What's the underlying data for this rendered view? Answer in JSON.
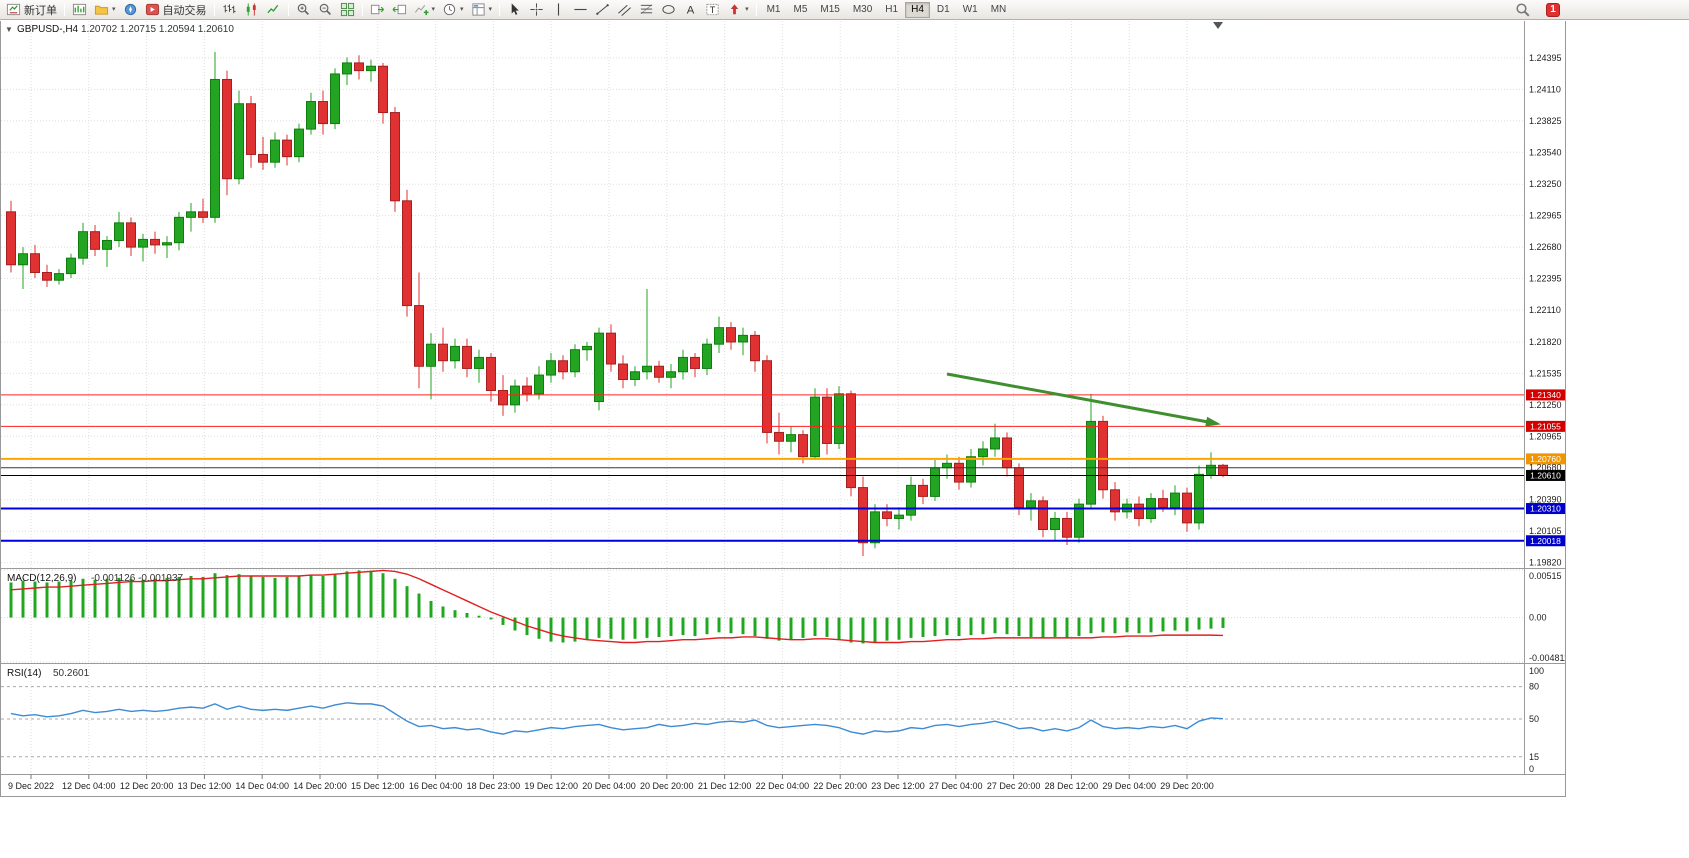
{
  "toolbar": {
    "new_order": "新订单",
    "auto_trading": "自动交易",
    "timeframes": [
      "M1",
      "M5",
      "M15",
      "M30",
      "H1",
      "H4",
      "D1",
      "W1",
      "MN"
    ],
    "active_timeframe": "H4",
    "badge": "1",
    "icons": [
      "new-order-icon",
      "new-chart-icon",
      "profiles-icon",
      "navigator-icon",
      "auto-trading-icon",
      "bar-chart-icon",
      "candlestick-icon",
      "line-chart-icon",
      "zoom-in-icon",
      "zoom-out-icon",
      "tile-windows-icon",
      "auto-scroll-icon",
      "chart-shift-icon",
      "indicators-icon",
      "periods-icon",
      "templates-icon",
      "cursor-icon",
      "crosshair-icon",
      "vertical-line-icon",
      "horizontal-line-icon",
      "trendline-icon",
      "channel-icon",
      "fibonacci-icon",
      "cycle-lines-icon",
      "text-icon",
      "label-icon",
      "arrows-icon",
      "search-icon",
      "notification-icon"
    ]
  },
  "chart_data": [
    {
      "type": "candlestick",
      "pane": "main",
      "title": "GBPUSD-,H4",
      "ohlc_text": "1.20702 1.20715 1.20594 1.20610",
      "current_ohlc": {
        "open": 1.20702,
        "high": 1.20715,
        "low": 1.20594,
        "close": 1.2061
      },
      "ylim": [
        1.1978,
        1.2473
      ],
      "up_color": "#23a523",
      "down_color": "#e03232",
      "y_ticks": [
        "1.24395",
        "1.24110",
        "1.23825",
        "1.23540",
        "1.23250",
        "1.22965",
        "1.22680",
        "1.22395",
        "1.22110",
        "1.21820",
        "1.21535",
        "1.21250",
        "1.20965",
        "1.20680",
        "1.20390",
        "1.20105",
        "1.19820"
      ],
      "x_labels": [
        "9 Dec 2022",
        "12 Dec 04:00",
        "12 Dec 20:00",
        "13 Dec 12:00",
        "14 Dec 04:00",
        "14 Dec 20:00",
        "15 Dec 12:00",
        "16 Dec 04:00",
        "18 Dec 23:00",
        "19 Dec 12:00",
        "20 Dec 04:00",
        "20 Dec 20:00",
        "21 Dec 12:00",
        "22 Dec 04:00",
        "22 Dec 20:00",
        "23 Dec 12:00",
        "27 Dec 04:00",
        "27 Dec 20:00",
        "28 Dec 12:00",
        "29 Dec 04:00",
        "29 Dec 20:00"
      ],
      "hlines": [
        {
          "price": 1.2134,
          "color": "#ff2020",
          "width": 1,
          "label": "1.21340",
          "label_bg": "#d40000"
        },
        {
          "price": 1.21055,
          "color": "#ff2020",
          "width": 1,
          "label": "1.21055",
          "label_bg": "#d40000"
        },
        {
          "price": 1.2076,
          "color": "#ffa500",
          "width": 2,
          "label": "1.20760",
          "label_bg": "#f09500"
        },
        {
          "price": 1.2068,
          "color": "#3a3a3a",
          "width": 1,
          "label": null,
          "label_bg": null
        },
        {
          "price": 1.2061,
          "color": "#000000",
          "width": 1,
          "label": "1.20610",
          "label_bg": "#000000"
        },
        {
          "price": 1.2031,
          "color": "#0000dd",
          "width": 2,
          "label": "1.20310",
          "label_bg": "#0000cc"
        },
        {
          "price": 1.20018,
          "color": "#0000dd",
          "width": 2,
          "label": "1.20018",
          "label_bg": "#0000cc"
        }
      ],
      "trend_arrow": {
        "from": {
          "bar": 78,
          "price": 1.2153
        },
        "to": {
          "bar": 100.5,
          "price": 1.2108
        },
        "color": "#3f8f2f"
      },
      "candles_ohlc": [
        [
          1.23,
          1.231,
          1.2245,
          1.2252
        ],
        [
          1.2252,
          1.2268,
          1.223,
          1.2262
        ],
        [
          1.2262,
          1.227,
          1.224,
          1.2245
        ],
        [
          1.2245,
          1.2252,
          1.2232,
          1.2238
        ],
        [
          1.2238,
          1.2248,
          1.2234,
          1.2244
        ],
        [
          1.2244,
          1.2262,
          1.224,
          1.2258
        ],
        [
          1.2258,
          1.229,
          1.2252,
          1.2282
        ],
        [
          1.2282,
          1.2288,
          1.226,
          1.2266
        ],
        [
          1.2266,
          1.2278,
          1.225,
          1.2274
        ],
        [
          1.2274,
          1.23,
          1.2268,
          1.229
        ],
        [
          1.229,
          1.2295,
          1.226,
          1.2268
        ],
        [
          1.2268,
          1.228,
          1.2255,
          1.2275
        ],
        [
          1.2275,
          1.2282,
          1.2262,
          1.227
        ],
        [
          1.227,
          1.2278,
          1.2258,
          1.2272
        ],
        [
          1.2272,
          1.23,
          1.2265,
          1.2295
        ],
        [
          1.2295,
          1.2308,
          1.2282,
          1.23
        ],
        [
          1.23,
          1.2312,
          1.229,
          1.2295
        ],
        [
          1.2295,
          1.2445,
          1.229,
          1.242
        ],
        [
          1.242,
          1.2428,
          1.2315,
          1.233
        ],
        [
          1.233,
          1.241,
          1.2325,
          1.2398
        ],
        [
          1.2398,
          1.2405,
          1.234,
          1.2352
        ],
        [
          1.2352,
          1.2368,
          1.2338,
          1.2345
        ],
        [
          1.2345,
          1.2372,
          1.234,
          1.2365
        ],
        [
          1.2365,
          1.237,
          1.2342,
          1.235
        ],
        [
          1.235,
          1.238,
          1.2345,
          1.2375
        ],
        [
          1.2375,
          1.2408,
          1.237,
          1.24
        ],
        [
          1.24,
          1.241,
          1.237,
          1.238
        ],
        [
          1.238,
          1.243,
          1.2375,
          1.2425
        ],
        [
          1.2425,
          1.244,
          1.2415,
          1.2435
        ],
        [
          1.2435,
          1.2442,
          1.242,
          1.2428
        ],
        [
          1.2428,
          1.2438,
          1.2418,
          1.2432
        ],
        [
          1.2432,
          1.2435,
          1.238,
          1.239
        ],
        [
          1.239,
          1.2395,
          1.23,
          1.231
        ],
        [
          1.231,
          1.232,
          1.2205,
          1.2215
        ],
        [
          1.2215,
          1.2245,
          1.214,
          1.216
        ],
        [
          1.216,
          1.219,
          1.213,
          1.218
        ],
        [
          1.218,
          1.2195,
          1.2155,
          1.2165
        ],
        [
          1.2165,
          1.2185,
          1.2158,
          1.2178
        ],
        [
          1.2178,
          1.2185,
          1.215,
          1.2158
        ],
        [
          1.2158,
          1.2175,
          1.2145,
          1.2168
        ],
        [
          1.2168,
          1.2172,
          1.2128,
          1.2138
        ],
        [
          1.2138,
          1.2152,
          1.2115,
          1.2125
        ],
        [
          1.2125,
          1.2148,
          1.2118,
          1.2142
        ],
        [
          1.2142,
          1.215,
          1.2128,
          1.2135
        ],
        [
          1.2135,
          1.216,
          1.213,
          1.2152
        ],
        [
          1.2152,
          1.2172,
          1.2145,
          1.2165
        ],
        [
          1.2165,
          1.217,
          1.2148,
          1.2155
        ],
        [
          1.2155,
          1.218,
          1.215,
          1.2175
        ],
        [
          1.2175,
          1.2182,
          1.2165,
          1.2178
        ],
        [
          1.2128,
          1.2195,
          1.212,
          1.219
        ],
        [
          1.219,
          1.2198,
          1.2155,
          1.2162
        ],
        [
          1.2162,
          1.217,
          1.214,
          1.2148
        ],
        [
          1.2148,
          1.216,
          1.2142,
          1.2155
        ],
        [
          1.2155,
          1.223,
          1.2148,
          1.216
        ],
        [
          1.216,
          1.2165,
          1.2145,
          1.215
        ],
        [
          1.215,
          1.2162,
          1.214,
          1.2155
        ],
        [
          1.2155,
          1.2175,
          1.2148,
          1.2168
        ],
        [
          1.2168,
          1.2172,
          1.215,
          1.2158
        ],
        [
          1.2158,
          1.2185,
          1.2152,
          1.218
        ],
        [
          1.218,
          1.2205,
          1.2172,
          1.2195
        ],
        [
          1.2195,
          1.22,
          1.2175,
          1.2182
        ],
        [
          1.2182,
          1.2195,
          1.217,
          1.2188
        ],
        [
          1.2188,
          1.2192,
          1.2155,
          1.2165
        ],
        [
          1.2165,
          1.217,
          1.209,
          1.21
        ],
        [
          1.21,
          1.2118,
          1.208,
          1.2092
        ],
        [
          1.2092,
          1.2105,
          1.2082,
          1.2098
        ],
        [
          1.2098,
          1.2102,
          1.2072,
          1.2078
        ],
        [
          1.2078,
          1.214,
          1.2075,
          1.2132
        ],
        [
          1.2132,
          1.214,
          1.208,
          1.209
        ],
        [
          1.209,
          1.2142,
          1.2085,
          1.2135
        ],
        [
          1.2135,
          1.2138,
          1.2042,
          1.205
        ],
        [
          1.205,
          1.206,
          1.1988,
          1.2
        ],
        [
          1.2,
          1.2035,
          1.1995,
          1.2028
        ],
        [
          1.2028,
          1.2035,
          1.2015,
          1.2022
        ],
        [
          1.2022,
          1.2032,
          1.2012,
          1.2025
        ],
        [
          1.2025,
          1.206,
          1.202,
          1.2052
        ],
        [
          1.2052,
          1.2058,
          1.2035,
          1.2042
        ],
        [
          1.2042,
          1.2075,
          1.2038,
          1.2068
        ],
        [
          1.2068,
          1.208,
          1.2058,
          1.2072
        ],
        [
          1.2072,
          1.2078,
          1.2048,
          1.2055
        ],
        [
          1.2055,
          1.2085,
          1.205,
          1.2078
        ],
        [
          1.2078,
          1.2092,
          1.207,
          1.2085
        ],
        [
          1.2085,
          1.2108,
          1.2078,
          1.2095
        ],
        [
          1.2095,
          1.21,
          1.206,
          1.2068
        ],
        [
          1.2068,
          1.2072,
          1.2025,
          1.2032
        ],
        [
          1.2032,
          1.2045,
          1.202,
          1.2038
        ],
        [
          1.2038,
          1.2042,
          1.2005,
          1.2012
        ],
        [
          1.2012,
          1.2028,
          1.2002,
          1.2022
        ],
        [
          1.2022,
          1.2028,
          1.1998,
          1.2005
        ],
        [
          1.2005,
          1.204,
          1.2,
          1.2035
        ],
        [
          1.2035,
          1.2135,
          1.203,
          1.211
        ],
        [
          1.211,
          1.2115,
          1.204,
          1.2048
        ],
        [
          1.2048,
          1.2055,
          1.202,
          1.2028
        ],
        [
          1.2028,
          1.204,
          1.2022,
          1.2035
        ],
        [
          1.2035,
          1.2042,
          1.2015,
          1.2022
        ],
        [
          1.2022,
          1.2045,
          1.2018,
          1.204
        ],
        [
          1.204,
          1.2048,
          1.2028,
          1.2032
        ],
        [
          1.2032,
          1.2052,
          1.2025,
          1.2045
        ],
        [
          1.2045,
          1.205,
          1.201,
          1.2018
        ],
        [
          1.2018,
          1.207,
          1.2012,
          1.2062
        ],
        [
          1.2062,
          1.2082,
          1.2058,
          1.20702
        ],
        [
          1.20702,
          1.20715,
          1.20594,
          1.2061
        ]
      ]
    },
    {
      "type": "macd_histogram",
      "pane": "macd",
      "title": "MACD(12,26,9)",
      "values_text": "-0.001126 -0.001937",
      "macd_value": -0.001126,
      "signal_value": -0.001937,
      "ylim": [
        -0.004811,
        0.00515
      ],
      "y_ticks": [
        "0.00515",
        "0.00",
        "-0.004811"
      ],
      "y_tick_values": [
        0.00515,
        0,
        -0.004811
      ],
      "histogram_color": "#1fa81f",
      "signal_color": "#e02020",
      "histogram": [
        0.0038,
        0.004,
        0.0039,
        0.0038,
        0.0039,
        0.004,
        0.0042,
        0.0041,
        0.0042,
        0.0043,
        0.0042,
        0.0041,
        0.0042,
        0.0043,
        0.0044,
        0.0045,
        0.0044,
        0.0048,
        0.0046,
        0.0047,
        0.0045,
        0.0044,
        0.0043,
        0.0044,
        0.0045,
        0.0046,
        0.0045,
        0.0047,
        0.005,
        0.0051,
        0.005,
        0.0048,
        0.0042,
        0.0034,
        0.0026,
        0.0018,
        0.0012,
        0.0008,
        0.0005,
        0.0002,
        -0.0002,
        -0.0008,
        -0.0014,
        -0.0019,
        -0.0023,
        -0.0026,
        -0.0027,
        -0.0026,
        -0.0024,
        -0.0022,
        -0.0023,
        -0.0024,
        -0.0023,
        -0.0022,
        -0.0021,
        -0.002,
        -0.0019,
        -0.002,
        -0.0018,
        -0.0016,
        -0.0017,
        -0.0018,
        -0.002,
        -0.0023,
        -0.0025,
        -0.0024,
        -0.0022,
        -0.002,
        -0.0021,
        -0.0024,
        -0.0027,
        -0.0028,
        -0.0027,
        -0.0025,
        -0.0024,
        -0.0022,
        -0.0021,
        -0.002,
        -0.0019,
        -0.002,
        -0.0019,
        -0.0018,
        -0.0017,
        -0.0018,
        -0.002,
        -0.0021,
        -0.0022,
        -0.0021,
        -0.0022,
        -0.002,
        -0.0017,
        -0.0016,
        -0.0017,
        -0.0016,
        -0.0017,
        -0.0016,
        -0.0015,
        -0.0014,
        -0.0015,
        -0.0013,
        -0.0012,
        -0.001126
      ],
      "signal": [
        0.003,
        0.0031,
        0.0032,
        0.0033,
        0.0033,
        0.0034,
        0.0035,
        0.0036,
        0.0037,
        0.0038,
        0.0039,
        0.0039,
        0.004,
        0.004,
        0.0041,
        0.0042,
        0.0042,
        0.0043,
        0.0044,
        0.0045,
        0.0045,
        0.0045,
        0.0045,
        0.0045,
        0.0045,
        0.0046,
        0.0046,
        0.0047,
        0.0048,
        0.0049,
        0.005,
        0.0051,
        0.005,
        0.0047,
        0.0042,
        0.0036,
        0.003,
        0.0024,
        0.0018,
        0.0012,
        0.0006,
        0.0001,
        -0.0004,
        -0.0009,
        -0.0013,
        -0.0017,
        -0.002,
        -0.0022,
        -0.0024,
        -0.0025,
        -0.0026,
        -0.0027,
        -0.0027,
        -0.0026,
        -0.0026,
        -0.0025,
        -0.0024,
        -0.0024,
        -0.0023,
        -0.0022,
        -0.0022,
        -0.0021,
        -0.0021,
        -0.0022,
        -0.0023,
        -0.0024,
        -0.0024,
        -0.0023,
        -0.0023,
        -0.0024,
        -0.0025,
        -0.0026,
        -0.0027,
        -0.0027,
        -0.0027,
        -0.0026,
        -0.0026,
        -0.0025,
        -0.0024,
        -0.0024,
        -0.0023,
        -0.0023,
        -0.0022,
        -0.0022,
        -0.0022,
        -0.0022,
        -0.0022,
        -0.0022,
        -0.0022,
        -0.0022,
        -0.0022,
        -0.0021,
        -0.0021,
        -0.002,
        -0.002,
        -0.002,
        -0.0019,
        -0.0019,
        -0.0019,
        -0.0019,
        -0.0019,
        -0.001937
      ]
    },
    {
      "type": "line",
      "pane": "rsi",
      "title": "RSI(14)",
      "value_text": "50.2601",
      "current_value": 50.2601,
      "ylim": [
        0,
        100
      ],
      "y_ticks": [
        "100",
        "80",
        "50",
        "15",
        "0"
      ],
      "y_tick_values": [
        100,
        80,
        50,
        15,
        0
      ],
      "levels": [
        80,
        50,
        15
      ],
      "line_color": "#3d8bd4",
      "values": [
        55,
        53,
        54,
        52,
        53,
        55,
        58,
        56,
        57,
        59,
        57,
        58,
        57,
        58,
        60,
        61,
        60,
        64,
        59,
        62,
        59,
        58,
        59,
        58,
        60,
        62,
        60,
        63,
        65,
        64,
        64,
        62,
        55,
        48,
        43,
        44,
        41,
        42,
        40,
        41,
        38,
        36,
        39,
        38,
        40,
        42,
        41,
        43,
        44,
        45,
        42,
        40,
        41,
        42,
        45,
        43,
        44,
        46,
        45,
        47,
        48,
        47,
        49,
        44,
        42,
        43,
        44,
        45,
        44,
        42,
        38,
        36,
        39,
        38,
        39,
        42,
        41,
        44,
        45,
        43,
        45,
        46,
        48,
        45,
        41,
        42,
        39,
        41,
        39,
        42,
        49,
        43,
        41,
        42,
        41,
        43,
        42,
        44,
        41,
        48,
        51,
        50.2601
      ]
    }
  ]
}
